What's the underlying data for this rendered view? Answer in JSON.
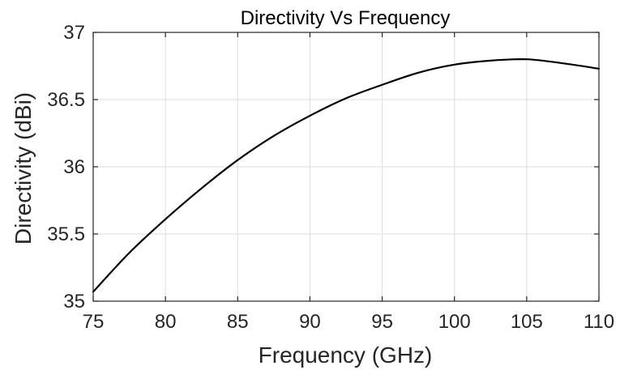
{
  "chart_data": {
    "type": "line",
    "title": "Directivity Vs Frequency",
    "xlabel": "Frequency (GHz)",
    "ylabel": "Directivity (dBi)",
    "xlim": [
      75,
      110
    ],
    "ylim": [
      35,
      37
    ],
    "x_ticks": [
      75,
      80,
      85,
      90,
      95,
      100,
      105,
      110
    ],
    "y_ticks": [
      35,
      35.5,
      36,
      36.5,
      37
    ],
    "x_tick_labels": [
      "75",
      "80",
      "85",
      "90",
      "95",
      "100",
      "105",
      "110"
    ],
    "y_tick_labels": [
      "35",
      "35.5",
      "36",
      "36.5",
      "37"
    ],
    "grid": true,
    "legend": "none",
    "series": [
      {
        "color": "#000000",
        "x": [
          75,
          77.5,
          80,
          82.5,
          85,
          87.5,
          90,
          92.5,
          95,
          97.5,
          100,
          102.5,
          105,
          107.5,
          110
        ],
        "y": [
          35.07,
          35.36,
          35.61,
          35.84,
          36.05,
          36.23,
          36.38,
          36.51,
          36.61,
          36.7,
          36.76,
          36.79,
          36.8,
          36.77,
          36.73
        ]
      }
    ]
  }
}
